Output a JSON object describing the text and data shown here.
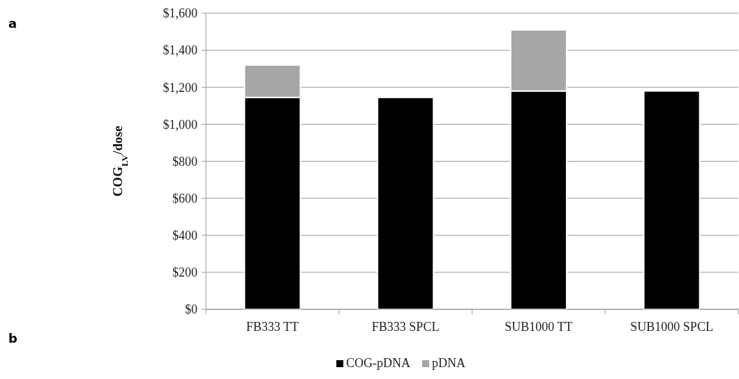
{
  "chart_data": {
    "type": "bar",
    "ylabel": "COG$_{LV}$/dose",
    "categories": [
      "FB333 TT",
      "FB333 SPCL",
      "SUB1000 TT",
      "SUB1000 SPCL"
    ],
    "stacked": true,
    "series": [
      {
        "name": "COG-pDNA",
        "color": "#000000",
        "values": [
          1145,
          1145,
          1180,
          1180
        ]
      },
      {
        "name": "pDNA",
        "color": "#a6a6a6",
        "values": [
          175,
          null,
          330,
          null
        ]
      }
    ],
    "ylim": [
      0,
      1600
    ],
    "yticks": [
      {
        "value": 0,
        "label": "$0"
      },
      {
        "value": 200,
        "label": "$200"
      },
      {
        "value": 400,
        "label": "$400"
      },
      {
        "value": 600,
        "label": "$600"
      },
      {
        "value": 800,
        "label": "$800"
      },
      {
        "value": 1000,
        "label": "$1,000"
      },
      {
        "value": 1200,
        "label": "$1,200"
      },
      {
        "value": 1400,
        "label": "$1,400"
      },
      {
        "value": 1600,
        "label": "$1,600"
      }
    ],
    "grid": "y",
    "legend": "bottom",
    "annotations": [
      "a",
      "b"
    ]
  }
}
